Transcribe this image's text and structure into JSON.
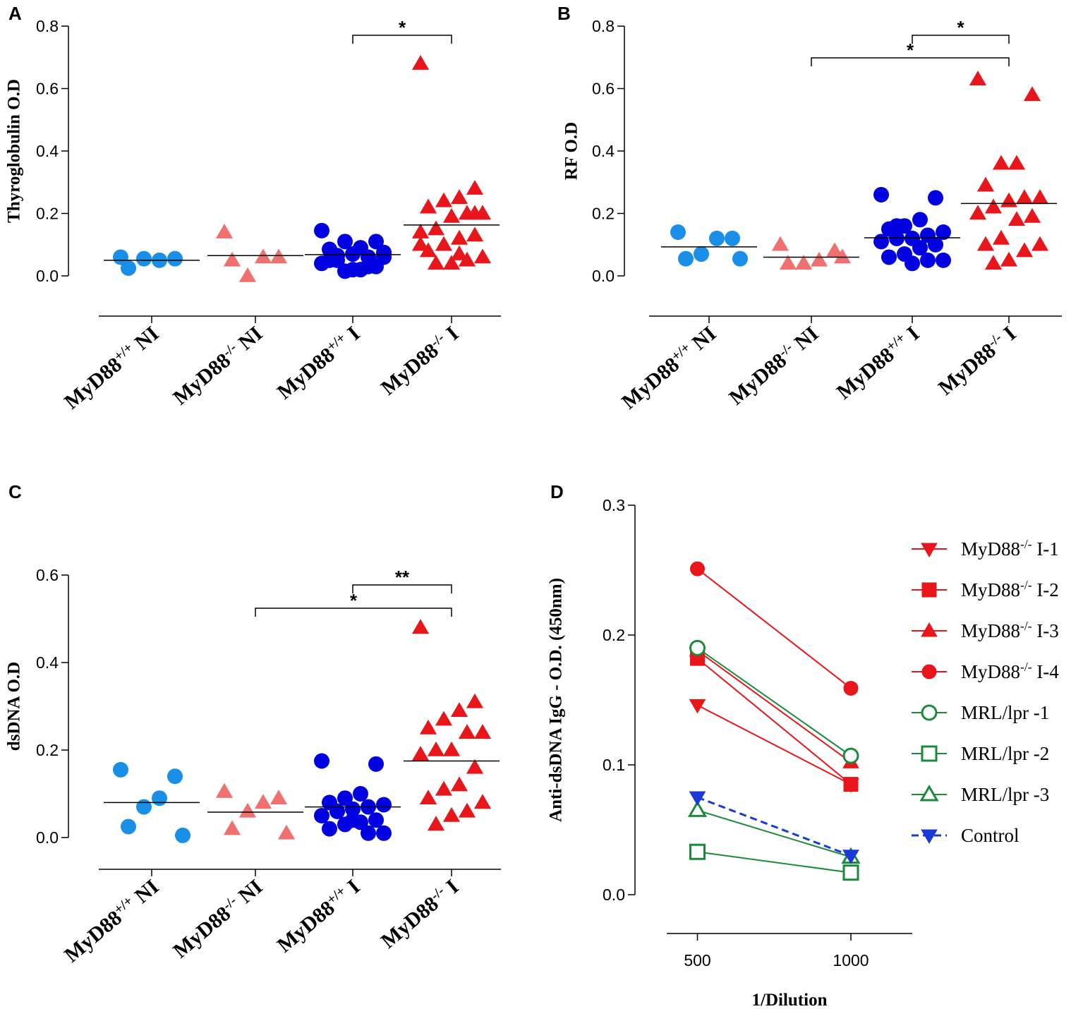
{
  "chart_data": [
    {
      "type": "dot",
      "panel": "A",
      "y_label": "Thyroglobulin O.D",
      "categories": [
        "MyD88+/+ NI",
        "MyD88-/- NI",
        "MyD88+/+ I",
        "MyD88-/- I"
      ],
      "colors": [
        "#1a8fe8",
        "#f07070",
        "#0000e0",
        "#e8161b"
      ],
      "markers": [
        "circle",
        "triangle",
        "circle",
        "triangle"
      ],
      "values": [
        [
          0.06,
          0.055,
          0.05,
          0.055,
          0.025
        ],
        [
          0.14,
          0.06,
          0.06,
          0.0,
          0.05
        ],
        [
          0.145,
          0.11,
          0.09,
          0.11,
          0.085,
          0.075,
          0.06,
          0.07,
          0.05,
          0.04,
          0.03,
          0.02,
          0.015,
          0.05,
          0.06,
          0.03,
          0.02,
          0.065
        ],
        [
          0.68,
          0.28,
          0.25,
          0.24,
          0.22,
          0.2,
          0.2,
          0.19,
          0.15,
          0.14,
          0.13,
          0.12,
          0.1,
          0.08,
          0.06,
          0.05,
          0.04,
          0.04,
          0.1,
          0.2,
          0.07
        ]
      ],
      "means": [
        0.05,
        0.065,
        0.068,
        0.163
      ],
      "ylim": [
        0,
        0.8
      ],
      "yticks": [
        {
          "value": 0,
          "label": "0.0"
        },
        0.2,
        0.4,
        0.6,
        0.8
      ],
      "annotations": [
        "*"
      ]
    },
    {
      "type": "dot",
      "panel": "B",
      "y_label": "RF O.D",
      "categories": [
        "MyD88+/+ NI",
        "MyD88-/- NI",
        "MyD88+/+ I",
        "MyD88-/- I"
      ],
      "colors": [
        "#1a8fe8",
        "#f07070",
        "#0000e0",
        "#e8161b"
      ],
      "markers": [
        "circle",
        "triangle",
        "circle",
        "triangle"
      ],
      "values": [
        [
          0.14,
          0.12,
          0.12,
          0.07,
          0.055,
          0.055
        ],
        [
          0.1,
          0.08,
          0.05,
          0.04,
          0.04,
          0.06
        ],
        [
          0.26,
          0.25,
          0.18,
          0.16,
          0.15,
          0.14,
          0.13,
          0.12,
          0.12,
          0.11,
          0.1,
          0.09,
          0.07,
          0.06,
          0.05,
          0.05,
          0.04,
          0.16
        ],
        [
          0.63,
          0.58,
          0.36,
          0.36,
          0.29,
          0.25,
          0.25,
          0.24,
          0.22,
          0.2,
          0.19,
          0.18,
          0.12,
          0.1,
          0.1,
          0.08,
          0.05,
          0.04
        ]
      ],
      "means": [
        0.093,
        0.06,
        0.122,
        0.232
      ],
      "ylim": [
        0,
        0.8
      ],
      "yticks": [
        {
          "value": 0,
          "label": "0.0"
        },
        0.2,
        0.4,
        0.6,
        0.8
      ],
      "annotations": [
        "*",
        "*"
      ]
    },
    {
      "type": "dot",
      "panel": "C",
      "y_label": "dsDNA O.D",
      "categories": [
        "MyD88+/+ NI",
        "MyD88-/- NI",
        "MyD88+/+ I",
        "MyD88-/- I"
      ],
      "colors": [
        "#1a8fe8",
        "#f07070",
        "#0000e0",
        "#e8161b"
      ],
      "markers": [
        "circle",
        "triangle",
        "circle",
        "triangle"
      ],
      "values": [
        [
          0.155,
          0.14,
          0.09,
          0.07,
          0.025,
          0.005
        ],
        [
          0.105,
          0.09,
          0.08,
          0.06,
          0.02,
          0.01
        ],
        [
          0.175,
          0.168,
          0.1,
          0.09,
          0.08,
          0.075,
          0.07,
          0.065,
          0.06,
          0.05,
          0.04,
          0.035,
          0.03,
          0.02,
          0.01,
          0.01,
          0.04,
          0.06
        ],
        [
          0.48,
          0.31,
          0.29,
          0.27,
          0.25,
          0.24,
          0.24,
          0.2,
          0.2,
          0.19,
          0.16,
          0.12,
          0.11,
          0.09,
          0.08,
          0.06,
          0.05,
          0.03
        ]
      ],
      "means": [
        0.08,
        0.058,
        0.07,
        0.175
      ],
      "ylim": [
        0,
        0.6
      ],
      "yticks": [
        {
          "value": 0,
          "label": "0.0"
        },
        0.2,
        0.4,
        0.6
      ],
      "annotations": [
        "**",
        "*"
      ]
    },
    {
      "type": "line",
      "panel": "D",
      "y_label": "Anti-dsDNA IgG - O.D.  (450nm)",
      "x_label": "1/Dilution",
      "x": [
        500,
        1000
      ],
      "xlim": [
        400,
        1200
      ],
      "xticks": [
        500,
        1000
      ],
      "ylim": [
        0,
        0.3
      ],
      "yticks": [
        {
          "value": 0,
          "label": "0.0"
        },
        0.1,
        0.2,
        0.3
      ],
      "series": [
        {
          "name": "MyD88-/- I-1",
          "color": "#e8161b",
          "marker": "triangle-down",
          "filled": true,
          "values": [
            0.146,
            0.085
          ]
        },
        {
          "name": "MyD88-/- I-2",
          "color": "#e8161b",
          "marker": "square",
          "filled": true,
          "values": [
            0.182,
            0.085
          ]
        },
        {
          "name": "MyD88-/- I-3",
          "color": "#e8161b",
          "marker": "triangle",
          "filled": true,
          "values": [
            0.188,
            0.102
          ]
        },
        {
          "name": "MyD88-/- I-4",
          "color": "#e8161b",
          "marker": "circle",
          "filled": true,
          "values": [
            0.251,
            0.159
          ]
        },
        {
          "name": "MRL/lpr -1",
          "color": "#1a8a3a",
          "marker": "circle",
          "filled": false,
          "values": [
            0.19,
            0.107
          ]
        },
        {
          "name": "MRL/lpr -2",
          "color": "#1a8a3a",
          "marker": "square",
          "filled": false,
          "values": [
            0.033,
            0.017
          ]
        },
        {
          "name": "MRL/lpr -3",
          "color": "#1a8a3a",
          "marker": "triangle",
          "filled": false,
          "values": [
            0.065,
            0.029
          ]
        },
        {
          "name": "Control",
          "color": "#1a3ad8",
          "marker": "triangle-down",
          "filled": true,
          "dashed": true,
          "values": [
            0.075,
            0.03
          ]
        }
      ]
    }
  ]
}
